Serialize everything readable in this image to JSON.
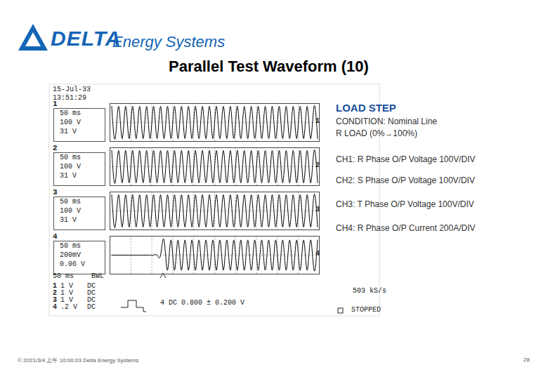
{
  "slide": {
    "brand": "DELTA",
    "brand_sub": "Energy Systems",
    "title": "Parallel Test Waveform (10)",
    "heading": "LOAD STEP",
    "condition": "CONDITION: Nominal Line",
    "load": "R LOAD (0%→100%)",
    "footer": "© 2021/3/4 上午 10:00:03 Delta Energy Systems",
    "page": "28"
  },
  "scope": {
    "date": "15-Jul-33",
    "time": "13:51:29",
    "timebase": "50 ms",
    "bwl": "BWL",
    "channel_settings": [
      [
        "1",
        "1 V",
        "DC"
      ],
      [
        "2",
        "1 V",
        "DC"
      ],
      [
        "3",
        "1 V",
        "DC"
      ],
      [
        "4",
        ".2 V",
        "DC"
      ]
    ],
    "trigger": "4 DC 0.800 ± 0.200 V",
    "sample_rate": "503 kS/s",
    "status": "STOPPED"
  },
  "chart_data": [
    {
      "type": "line",
      "title": "CH1: R Phase O/P Voltage 100V/DIV",
      "channel": "1",
      "readout": [
        "50 ms",
        "100 V",
        "31 V"
      ],
      "x": [
        4.17,
        12.5,
        20.83,
        29.17,
        37.5,
        45.83,
        54.17,
        62.5,
        70.83,
        79.17,
        87.5,
        95.83,
        104.17,
        112.5,
        120.83,
        129.17,
        137.5,
        145.83,
        154.17,
        162.5,
        170.83,
        179.17,
        187.5,
        195.83,
        204.17,
        212.5,
        220.83,
        229.17,
        237.5,
        245.83,
        254.17,
        262.5,
        270.83,
        279.17,
        287.5,
        295.83,
        304.17,
        312.5,
        320.83,
        329.17,
        337.5,
        345.83,
        354.17,
        362.5,
        370.83,
        379.17,
        387.5,
        395.83,
        404.17,
        412.5,
        420.83,
        429.17,
        437.5,
        445.83,
        454.17,
        462.5,
        470.83,
        479.17,
        487.5,
        495.83
      ],
      "values": [
        85,
        -85,
        85,
        -85,
        85,
        -85,
        85,
        -85,
        85,
        -85,
        85,
        -85,
        85,
        -85,
        85,
        -85,
        85,
        -85,
        85,
        -85,
        85,
        -85,
        85,
        -85,
        85,
        -85,
        85,
        -85,
        85,
        -85,
        85,
        -85,
        85,
        -85,
        85,
        -85,
        85,
        -85,
        85,
        -85,
        85,
        -85,
        85,
        -85,
        85,
        -85,
        85,
        -85,
        85,
        -85,
        85,
        -85,
        85,
        -85,
        85,
        -85,
        85,
        -85,
        85,
        -85
      ],
      "color": "#000000",
      "xlim": [
        0,
        500
      ],
      "xticks": [
        0,
        50,
        100,
        150,
        200,
        250,
        300,
        350,
        400,
        450,
        500
      ],
      "ylim": [
        -100,
        100
      ],
      "yticks": [
        -100,
        0,
        100
      ],
      "grid": true,
      "tick_labels": false
    },
    {
      "type": "line",
      "title": "CH2: S Phase O/P Voltage 100V/DIV",
      "channel": "2",
      "readout": [
        "50 ms",
        "100 V",
        "31 V"
      ],
      "x": [
        4.17,
        12.5,
        20.83,
        29.17,
        37.5,
        45.83,
        54.17,
        62.5,
        70.83,
        79.17,
        87.5,
        95.83,
        104.17,
        112.5,
        120.83,
        129.17,
        137.5,
        145.83,
        154.17,
        162.5,
        170.83,
        179.17,
        187.5,
        195.83,
        204.17,
        212.5,
        220.83,
        229.17,
        237.5,
        245.83,
        254.17,
        262.5,
        270.83,
        279.17,
        287.5,
        295.83,
        304.17,
        312.5,
        320.83,
        329.17,
        337.5,
        345.83,
        354.17,
        362.5,
        370.83,
        379.17,
        387.5,
        395.83,
        404.17,
        412.5,
        420.83,
        429.17,
        437.5,
        445.83,
        454.17,
        462.5,
        470.83,
        479.17,
        487.5,
        495.83
      ],
      "values": [
        85,
        -85,
        85,
        -85,
        85,
        -85,
        85,
        -85,
        85,
        -85,
        85,
        -85,
        85,
        -85,
        85,
        -85,
        85,
        -85,
        85,
        -85,
        85,
        -85,
        85,
        -85,
        85,
        -85,
        85,
        -85,
        85,
        -85,
        85,
        -85,
        85,
        -85,
        85,
        -85,
        85,
        -85,
        85,
        -85,
        85,
        -85,
        85,
        -85,
        85,
        -85,
        85,
        -85,
        85,
        -85,
        85,
        -85,
        85,
        -85,
        85,
        -85,
        85,
        -85,
        85,
        -85
      ],
      "color": "#000000",
      "xlim": [
        0,
        500
      ],
      "xticks": [
        0,
        50,
        100,
        150,
        200,
        250,
        300,
        350,
        400,
        450,
        500
      ],
      "ylim": [
        -100,
        100
      ],
      "yticks": [
        -100,
        0,
        100
      ],
      "grid": true,
      "tick_labels": false
    },
    {
      "type": "line",
      "title": "CH3: T Phase O/P Voltage 100V/DIV",
      "channel": "3",
      "readout": [
        "50 ms",
        "100 V",
        "31 V"
      ],
      "x": [
        4.17,
        12.5,
        20.83,
        29.17,
        37.5,
        45.83,
        54.17,
        62.5,
        70.83,
        79.17,
        87.5,
        95.83,
        104.17,
        112.5,
        120.83,
        129.17,
        137.5,
        145.83,
        154.17,
        162.5,
        170.83,
        179.17,
        187.5,
        195.83,
        204.17,
        212.5,
        220.83,
        229.17,
        237.5,
        245.83,
        254.17,
        262.5,
        270.83,
        279.17,
        287.5,
        295.83,
        304.17,
        312.5,
        320.83,
        329.17,
        337.5,
        345.83,
        354.17,
        362.5,
        370.83,
        379.17,
        387.5,
        395.83,
        404.17,
        412.5,
        420.83,
        429.17,
        437.5,
        445.83,
        454.17,
        462.5,
        470.83,
        479.17,
        487.5,
        495.83
      ],
      "values": [
        85,
        -85,
        85,
        -85,
        85,
        -85,
        85,
        -85,
        85,
        -85,
        85,
        -85,
        85,
        -85,
        85,
        -85,
        85,
        -85,
        85,
        -85,
        85,
        -85,
        85,
        -85,
        85,
        -85,
        85,
        -85,
        85,
        -85,
        85,
        -85,
        85,
        -85,
        85,
        -85,
        85,
        -85,
        85,
        -85,
        85,
        -85,
        85,
        -85,
        85,
        -85,
        85,
        -85,
        85,
        -85,
        85,
        -85,
        85,
        -85,
        85,
        -85,
        85,
        -85,
        85,
        -85
      ],
      "color": "#000000",
      "xlim": [
        0,
        500
      ],
      "xticks": [
        0,
        50,
        100,
        150,
        200,
        250,
        300,
        350,
        400,
        450,
        500
      ],
      "ylim": [
        -100,
        100
      ],
      "yticks": [
        -100,
        0,
        100
      ],
      "grid": true,
      "tick_labels": false
    },
    {
      "type": "line",
      "title": "CH4: R Phase O/P Current 200A/DIV",
      "channel": "4",
      "readout": [
        "50 ms",
        "200mV",
        "0.06 V"
      ],
      "x": [
        4.17,
        12.5,
        20.83,
        29.17,
        37.5,
        45.83,
        54.17,
        62.5,
        70.83,
        79.17,
        87.5,
        95.83,
        104.17,
        112.5,
        120.83,
        129.17,
        137.5,
        145.83,
        154.17,
        162.5,
        170.83,
        179.17,
        187.5,
        195.83,
        204.17,
        212.5,
        220.83,
        229.17,
        237.5,
        245.83,
        254.17,
        262.5,
        270.83,
        279.17,
        287.5,
        295.83,
        304.17,
        312.5,
        320.83,
        329.17,
        337.5,
        345.83,
        354.17,
        362.5,
        370.83,
        379.17,
        387.5,
        395.83,
        404.17,
        412.5,
        420.83,
        429.17,
        437.5,
        445.83,
        454.17,
        462.5,
        470.83,
        479.17,
        487.5,
        495.83
      ],
      "values": [
        0,
        0,
        0,
        0,
        0,
        0,
        0,
        0,
        0,
        0,
        0,
        0,
        0,
        0,
        0,
        160,
        -160,
        160,
        -160,
        160,
        -160,
        160,
        -160,
        160,
        -160,
        160,
        -160,
        160,
        -160,
        160,
        -160,
        160,
        -160,
        160,
        -160,
        160,
        -160,
        160,
        -160,
        160,
        -160,
        160,
        -160,
        160,
        -160,
        160,
        -160,
        160,
        -160,
        160,
        -160,
        160,
        -160,
        160,
        -160,
        160,
        -160,
        160,
        -160,
        160
      ],
      "color": "#000000",
      "xlim": [
        0,
        500
      ],
      "xticks": [
        0,
        50,
        100,
        150,
        200,
        250,
        300,
        350,
        400,
        450,
        500
      ],
      "ylim": [
        -200,
        200
      ],
      "yticks": [
        -200,
        0,
        200
      ],
      "grid": true,
      "tick_labels": false
    }
  ]
}
